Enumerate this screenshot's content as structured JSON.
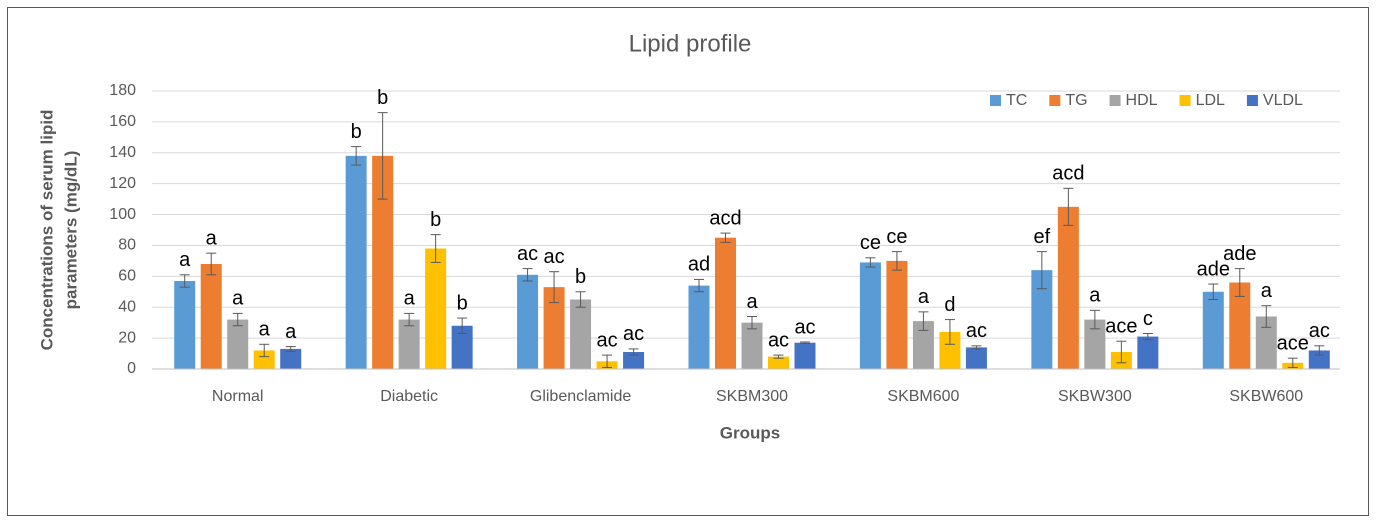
{
  "chart_data": {
    "type": "bar",
    "title": "Lipid profile",
    "y_label": [
      "Concentrations of serum lipid",
      "parameters (mg/dL)"
    ],
    "x_label": "Groups",
    "categories": [
      "Normal",
      "Diabetic",
      "Glibenclamide",
      "SKBM300",
      "SKBM600",
      "SKBW300",
      "SKBW600"
    ],
    "series": [
      {
        "name": "TC",
        "color": "#5b9bd5",
        "values": [
          57,
          138,
          61,
          54,
          69,
          64,
          50
        ],
        "errors": [
          4,
          6,
          4,
          4,
          3,
          12,
          5
        ],
        "annotations": [
          "a",
          "b",
          "ac",
          "ad",
          "ce",
          "ef",
          "ade"
        ]
      },
      {
        "name": "TG",
        "color": "#ed7d31",
        "values": [
          68,
          138,
          53,
          85,
          70,
          105,
          56
        ],
        "errors": [
          7,
          28,
          10,
          3,
          6,
          12,
          9
        ],
        "annotations": [
          "a",
          "b",
          "ac",
          "acd",
          "ce",
          "acd",
          "ade"
        ]
      },
      {
        "name": "HDL",
        "color": "#a5a5a5",
        "values": [
          32,
          32,
          45,
          30,
          31,
          32,
          34
        ],
        "errors": [
          4,
          4,
          5,
          4,
          6,
          6,
          7
        ],
        "annotations": [
          "a",
          "a",
          "b",
          "a",
          "a",
          "a",
          "a"
        ]
      },
      {
        "name": "LDL",
        "color": "#ffc000",
        "values": [
          12,
          78,
          5,
          8,
          24,
          11,
          4
        ],
        "errors": [
          4,
          9,
          4,
          1,
          8,
          7,
          3
        ],
        "annotations": [
          "a",
          "b",
          "ac",
          "ac",
          "d",
          "ace",
          "ace"
        ]
      },
      {
        "name": "VLDL",
        "color": "#4472c4",
        "values": [
          13,
          28,
          11,
          17,
          14,
          21,
          12
        ],
        "errors": [
          1.5,
          5,
          2,
          0.5,
          1,
          2,
          3
        ],
        "annotations": [
          "a",
          "b",
          "ac",
          "ac",
          "ac",
          "c",
          "ac"
        ]
      }
    ],
    "ylim": [
      0,
      180
    ],
    "yticks": [
      0,
      20,
      40,
      60,
      80,
      100,
      120,
      140,
      160,
      180
    ],
    "grid": true,
    "legend": "top-right"
  }
}
